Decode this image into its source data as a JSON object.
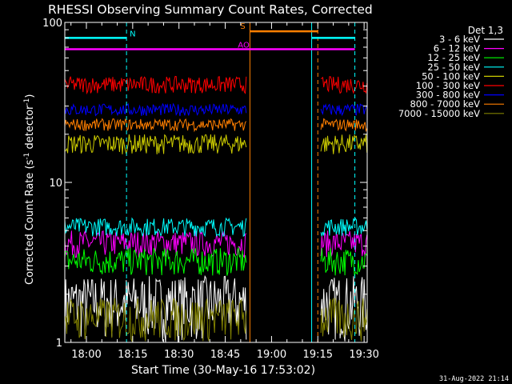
{
  "chart_data": {
    "type": "line",
    "title": "RHESSI Observing Summary Count Rates, Corrected",
    "xlabel": "Start Time (30-May-16 17:53:02)",
    "ylabel": "Corrected Count Rate (s⁻¹ detector⁻¹)",
    "ylabel_main": "Corrected Count Rate (s",
    "ylabel_sup1": "-1",
    "ylabel_mid": " detector",
    "ylabel_sup2": "-1",
    "ylabel_end": ")",
    "yscale": "log",
    "ylim": [
      1,
      100
    ],
    "xlim": [
      "17:53",
      "19:31"
    ],
    "x_ticks": [
      "18:00",
      "18:15",
      "18:30",
      "18:45",
      "19:00",
      "19:15",
      "19:30"
    ],
    "y_ticks": [
      "1",
      "10",
      "100"
    ],
    "legend_title": "Det 1,3",
    "legend_position": "right",
    "series": [
      {
        "name": "3 - 6 keV",
        "color": "#ffffff",
        "band": [
          1.0,
          2.6
        ],
        "gap": [
          "18:52",
          "19:16"
        ]
      },
      {
        "name": "6 - 12 keV",
        "color": "#ff00ff",
        "band": [
          3.4,
          5.0
        ],
        "gap": [
          "18:52",
          "19:16"
        ]
      },
      {
        "name": "12 - 25 keV",
        "color": "#00ff00",
        "band": [
          2.6,
          3.9
        ],
        "gap": [
          "18:52",
          "19:16"
        ]
      },
      {
        "name": "25 - 50 keV",
        "color": "#00ffff",
        "band": [
          4.6,
          6.0
        ],
        "gap": [
          "18:52",
          "19:16"
        ]
      },
      {
        "name": "50 - 100 keV",
        "color": "#cccc00",
        "band": [
          15,
          20
        ],
        "gap": [
          "18:52",
          "19:16"
        ]
      },
      {
        "name": "100 - 300 keV",
        "color": "#ff0000",
        "band": [
          36,
          46
        ],
        "gap": [
          "18:52",
          "19:16"
        ]
      },
      {
        "name": "300 - 800 keV",
        "color": "#0000ff",
        "band": [
          26,
          31
        ],
        "gap": [
          "18:52",
          "19:16"
        ]
      },
      {
        "name": "800 - 7000 keV",
        "color": "#ff7f00",
        "band": [
          21,
          25
        ],
        "gap": [
          "18:52",
          "19:16"
        ]
      },
      {
        "name": "7000 - 15000 keV",
        "color": "#808000",
        "band": [
          1.0,
          1.9
        ],
        "gap": [
          "18:52",
          "19:16"
        ]
      }
    ],
    "flags": [
      {
        "label": "N",
        "color": "#00ffff",
        "y": 80,
        "segments": [
          [
            "17:53",
            "18:13"
          ],
          [
            "19:13",
            "19:27"
          ]
        ]
      },
      {
        "label": "S",
        "color": "#ff7f00",
        "y": 88,
        "segments": [
          [
            "18:53",
            "19:15"
          ]
        ]
      },
      {
        "label": "AO",
        "color": "#ff00ff",
        "y": 68,
        "segments": [
          [
            "17:53",
            "19:27"
          ]
        ]
      }
    ],
    "vlines": [
      {
        "x": "18:13",
        "color": "#00ffff",
        "style": "dashed"
      },
      {
        "x": "18:53",
        "color": "#ff7f00",
        "style": "solid"
      },
      {
        "x": "19:13",
        "color": "#00ffff",
        "style": "solid"
      },
      {
        "x": "19:15",
        "color": "#ff7f00",
        "style": "dashed"
      },
      {
        "x": "19:27",
        "color": "#00ffff",
        "style": "dashed"
      }
    ],
    "footer": "31-Aug-2022 21:14"
  }
}
